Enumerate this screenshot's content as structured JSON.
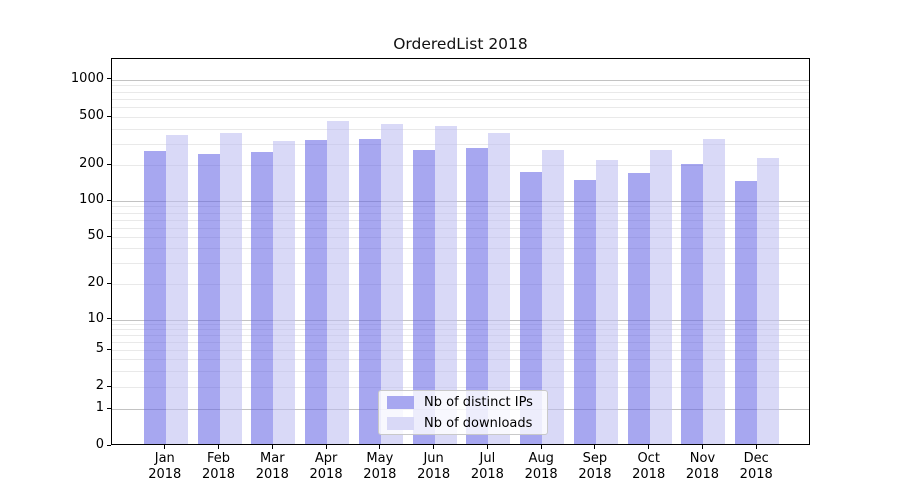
{
  "title": "OrderedList 2018",
  "chart_data": {
    "type": "bar",
    "title": "OrderedList 2018",
    "categories": [
      "Jan 2018",
      "Feb 2018",
      "Mar 2018",
      "Apr 2018",
      "May 2018",
      "Jun 2018",
      "Jul 2018",
      "Aug 2018",
      "Sep 2018",
      "Oct 2018",
      "Nov 2018",
      "Dec 2018"
    ],
    "series": [
      {
        "name": "Nb of distinct IPs",
        "color": "#a7a7f0",
        "fill": "rgba(98,98,228,0.56)",
        "values": [
          260,
          248,
          256,
          325,
          330,
          264,
          275,
          174,
          150,
          172,
          205,
          147
        ]
      },
      {
        "name": "Nb of downloads",
        "color": "#d9d9f7",
        "fill": "rgba(187,187,241,0.56)",
        "values": [
          352,
          366,
          314,
          464,
          440,
          420,
          368,
          264,
          220,
          267,
          326,
          230
        ]
      }
    ],
    "x_axis": {
      "tick_line2": "2018",
      "months": [
        "Jan",
        "Feb",
        "Mar",
        "Apr",
        "May",
        "Jun",
        "Jul",
        "Aug",
        "Sep",
        "Oct",
        "Nov",
        "Dec"
      ]
    },
    "y_axis": {
      "scale": "symlog",
      "range": [
        0,
        1500
      ],
      "ticks": [
        {
          "value": 0,
          "label": "0"
        },
        {
          "value": 1,
          "label": "1"
        },
        {
          "value": 2,
          "label": "2"
        },
        {
          "value": 5,
          "label": "5"
        },
        {
          "value": 10,
          "label": "10"
        },
        {
          "value": 20,
          "label": "20"
        },
        {
          "value": 50,
          "label": "50"
        },
        {
          "value": 100,
          "label": "100"
        },
        {
          "value": 200,
          "label": "200"
        },
        {
          "value": 500,
          "label": "500"
        },
        {
          "value": 1000,
          "label": "1000"
        }
      ],
      "major_gridlines": [
        1,
        10,
        100,
        1000
      ],
      "minor_gridlines": [
        2,
        3,
        4,
        5,
        6,
        7,
        8,
        9,
        20,
        30,
        40,
        50,
        60,
        70,
        80,
        90,
        200,
        300,
        400,
        500,
        600,
        700,
        800,
        900
      ]
    },
    "legend": {
      "position": "lower center"
    },
    "grid": {
      "major_color": "#c3c3c3",
      "minor_color": "#e9e9e9"
    },
    "colors": {
      "background": "#ffffff",
      "spine": "#000000",
      "text": "#000000"
    }
  }
}
